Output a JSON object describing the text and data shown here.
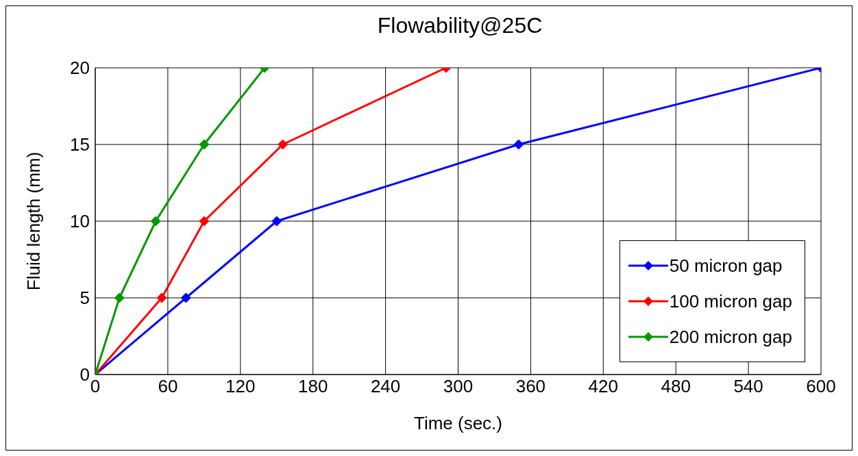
{
  "chart_data": {
    "type": "line",
    "title": "Flowability@25C",
    "xlabel": "Time (sec.)",
    "ylabel": "Fluid length (mm)",
    "xlim": [
      0,
      600
    ],
    "xticks": [
      0,
      60,
      120,
      180,
      240,
      300,
      360,
      420,
      480,
      540,
      600
    ],
    "ylim": [
      0,
      20
    ],
    "yticks": [
      0,
      5,
      10,
      15,
      20
    ],
    "grid": true,
    "legend": "bottom right",
    "marker": "diamond",
    "line_style": "solid",
    "series": [
      {
        "name": "50 micron gap",
        "color": "#0000ff",
        "x": [
          0,
          75,
          150,
          350,
          600
        ],
        "values": [
          0,
          5,
          10,
          15,
          20
        ]
      },
      {
        "name": "100 micron gap",
        "color": "#ff0000",
        "x": [
          0,
          55,
          90,
          155,
          290
        ],
        "values": [
          0,
          5,
          10,
          15,
          20
        ]
      },
      {
        "name": "200 micron gap",
        "color": "#009900",
        "x": [
          0,
          20,
          50,
          90,
          140
        ],
        "values": [
          0,
          5,
          10,
          15,
          20
        ]
      }
    ]
  }
}
